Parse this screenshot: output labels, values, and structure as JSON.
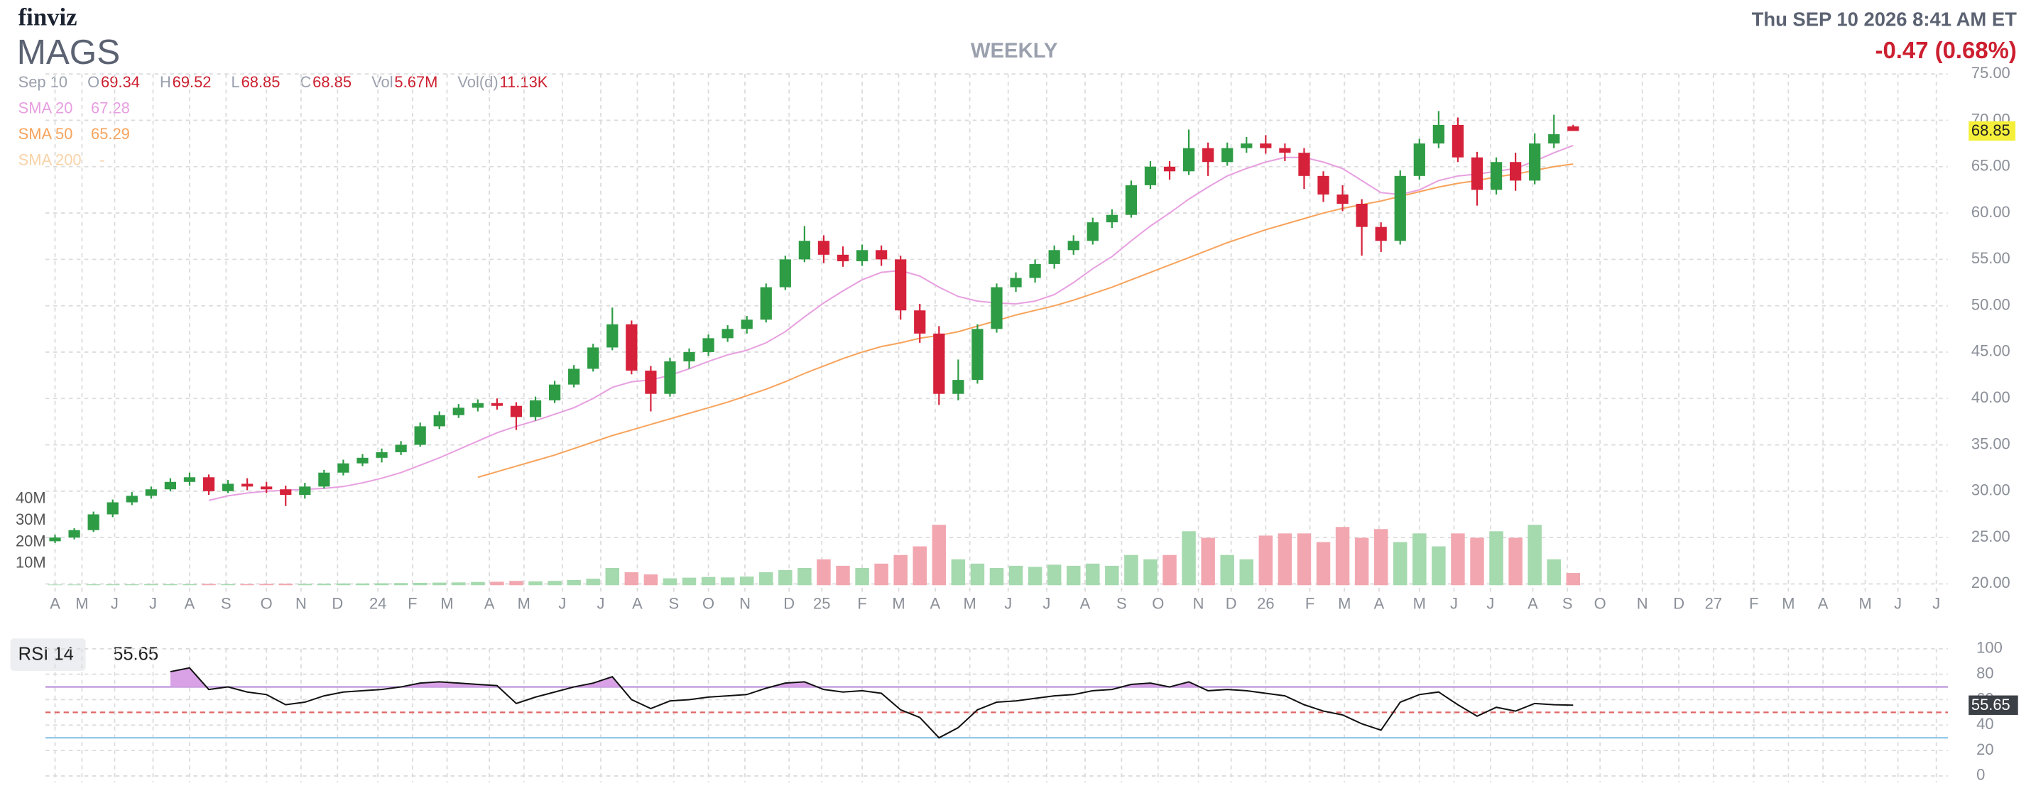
{
  "header": {
    "logo": "finviz",
    "ticker": "MAGS",
    "timeframe": "WEEKLY",
    "datetime": "Thu SEP 10 2026 8:41 AM ET",
    "change": "-0.47 (0.68%)",
    "date": "Sep 10",
    "o": "O",
    "h": "H",
    "l": "L",
    "c": "C",
    "vol": "Vol",
    "vol_value": "5.67M",
    "vold": "Vol(d)",
    "vold_value": "11.13K"
  },
  "chart_data": [
    {
      "type": "candlestick",
      "up_color": "#2e9c45",
      "down_color": "#d6213a",
      "xlim": [
        -0.5,
        98.5
      ],
      "xticks": [
        {
          "value": 0,
          "label": "A"
        },
        {
          "value": 1.4,
          "label": "M"
        },
        {
          "value": 3.1,
          "label": "J"
        },
        {
          "value": 5.1,
          "label": "J"
        },
        {
          "value": 7.0,
          "label": "A"
        },
        {
          "value": 8.9,
          "label": "S"
        },
        {
          "value": 11.0,
          "label": "O"
        },
        {
          "value": 12.8,
          "label": "N"
        },
        {
          "value": 14.7,
          "label": "D"
        },
        {
          "value": 16.8,
          "label": "24"
        },
        {
          "value": 18.6,
          "label": "F"
        },
        {
          "value": 20.4,
          "label": "M"
        },
        {
          "value": 22.6,
          "label": "A"
        },
        {
          "value": 24.4,
          "label": "M"
        },
        {
          "value": 26.4,
          "label": "J"
        },
        {
          "value": 28.4,
          "label": "J"
        },
        {
          "value": 30.3,
          "label": "A"
        },
        {
          "value": 32.2,
          "label": "S"
        },
        {
          "value": 34.0,
          "label": "O"
        },
        {
          "value": 35.9,
          "label": "N"
        },
        {
          "value": 38.2,
          "label": "D"
        },
        {
          "value": 39.9,
          "label": "25"
        },
        {
          "value": 42.0,
          "label": "F"
        },
        {
          "value": 43.9,
          "label": "M"
        },
        {
          "value": 45.8,
          "label": "A"
        },
        {
          "value": 47.6,
          "label": "M"
        },
        {
          "value": 49.6,
          "label": "J"
        },
        {
          "value": 51.6,
          "label": "J"
        },
        {
          "value": 53.6,
          "label": "A"
        },
        {
          "value": 55.5,
          "label": "S"
        },
        {
          "value": 57.4,
          "label": "O"
        },
        {
          "value": 59.5,
          "label": "N"
        },
        {
          "value": 61.2,
          "label": "D"
        },
        {
          "value": 63.0,
          "label": "26"
        },
        {
          "value": 65.3,
          "label": "F"
        },
        {
          "value": 67.1,
          "label": "M"
        },
        {
          "value": 68.9,
          "label": "A"
        },
        {
          "value": 71.0,
          "label": "M"
        },
        {
          "value": 72.8,
          "label": "J"
        },
        {
          "value": 74.7,
          "label": "J"
        },
        {
          "value": 76.9,
          "label": "A"
        },
        {
          "value": 78.7,
          "label": "S"
        },
        {
          "value": 80.4,
          "label": "O"
        },
        {
          "value": 82.6,
          "label": "N"
        },
        {
          "value": 84.5,
          "label": "D"
        },
        {
          "value": 86.3,
          "label": "27"
        },
        {
          "value": 88.4,
          "label": "F"
        },
        {
          "value": 90.2,
          "label": "M"
        },
        {
          "value": 92.0,
          "label": "A"
        },
        {
          "value": 94.2,
          "label": "M"
        },
        {
          "value": 95.9,
          "label": "J"
        },
        {
          "value": 97.9,
          "label": "J"
        }
      ],
      "ylim": [
        20,
        75
      ],
      "yticks": [
        {
          "value": 20,
          "label": "20.00"
        },
        {
          "value": 25,
          "label": "25.00"
        },
        {
          "value": 30,
          "label": "30.00"
        },
        {
          "value": 35,
          "label": "35.00"
        },
        {
          "value": 40,
          "label": "40.00"
        },
        {
          "value": 45,
          "label": "45.00"
        },
        {
          "value": 50,
          "label": "50.00"
        },
        {
          "value": 55,
          "label": "55.00"
        },
        {
          "value": 60,
          "label": "60.00"
        },
        {
          "value": 65,
          "label": "65.00"
        },
        {
          "value": 70,
          "label": "70.00"
        },
        {
          "value": 75,
          "label": "75.00"
        }
      ],
      "candles": [
        [
          24.6,
          25.3,
          24.4,
          25.0
        ],
        [
          25.0,
          26.0,
          24.8,
          25.8
        ],
        [
          25.8,
          27.8,
          25.6,
          27.5
        ],
        [
          27.5,
          29.1,
          27.2,
          28.8
        ],
        [
          28.8,
          29.9,
          28.5,
          29.5
        ],
        [
          29.5,
          30.5,
          29.2,
          30.2
        ],
        [
          30.2,
          31.4,
          30.0,
          31.0
        ],
        [
          31.0,
          32.0,
          30.6,
          31.5
        ],
        [
          31.5,
          31.8,
          29.6,
          30.0
        ],
        [
          30.0,
          31.2,
          29.8,
          30.8
        ],
        [
          30.8,
          31.4,
          30.1,
          30.5
        ],
        [
          30.5,
          31.0,
          29.8,
          30.2
        ],
        [
          30.2,
          30.6,
          28.4,
          29.6
        ],
        [
          29.6,
          30.9,
          29.2,
          30.5
        ],
        [
          30.5,
          32.3,
          30.3,
          32.0
        ],
        [
          32.0,
          33.4,
          31.7,
          33.0
        ],
        [
          33.0,
          34.0,
          32.7,
          33.6
        ],
        [
          33.6,
          34.6,
          33.1,
          34.2
        ],
        [
          34.2,
          35.4,
          33.9,
          35.0
        ],
        [
          35.0,
          37.4,
          34.8,
          37.0
        ],
        [
          37.0,
          38.6,
          36.7,
          38.2
        ],
        [
          38.2,
          39.4,
          37.9,
          39.0
        ],
        [
          39.0,
          39.9,
          38.6,
          39.5
        ],
        [
          39.5,
          40.0,
          38.8,
          39.2
        ],
        [
          39.2,
          39.6,
          36.6,
          38.0
        ],
        [
          38.0,
          40.2,
          37.6,
          39.8
        ],
        [
          39.8,
          41.9,
          39.5,
          41.5
        ],
        [
          41.5,
          43.6,
          41.2,
          43.2
        ],
        [
          43.2,
          45.9,
          42.9,
          45.5
        ],
        [
          45.5,
          49.8,
          45.2,
          48.0
        ],
        [
          48.0,
          48.4,
          42.6,
          43.0
        ],
        [
          43.0,
          43.5,
          38.6,
          40.5
        ],
        [
          40.5,
          44.4,
          40.2,
          44.0
        ],
        [
          44.0,
          45.4,
          43.2,
          45.0
        ],
        [
          45.0,
          46.9,
          44.6,
          46.5
        ],
        [
          46.5,
          47.9,
          46.1,
          47.5
        ],
        [
          47.5,
          48.9,
          47.0,
          48.5
        ],
        [
          48.5,
          52.4,
          48.2,
          52.0
        ],
        [
          52.0,
          55.4,
          51.7,
          55.0
        ],
        [
          55.0,
          58.6,
          54.7,
          57.0
        ],
        [
          57.0,
          57.6,
          54.6,
          55.5
        ],
        [
          55.5,
          56.4,
          54.2,
          54.8
        ],
        [
          54.8,
          56.6,
          54.3,
          56.0
        ],
        [
          56.0,
          56.5,
          54.3,
          55.0
        ],
        [
          55.0,
          55.4,
          48.5,
          49.5
        ],
        [
          49.5,
          50.2,
          46.0,
          47.0
        ],
        [
          47.0,
          47.8,
          39.3,
          40.5
        ],
        [
          40.5,
          44.2,
          39.8,
          42.0
        ],
        [
          42.0,
          48.0,
          41.6,
          47.5
        ],
        [
          47.5,
          52.4,
          47.1,
          52.0
        ],
        [
          52.0,
          53.6,
          51.5,
          53.0
        ],
        [
          53.0,
          55.0,
          52.5,
          54.5
        ],
        [
          54.5,
          56.5,
          54.0,
          56.0
        ],
        [
          56.0,
          57.6,
          55.5,
          57.0
        ],
        [
          57.0,
          59.5,
          56.6,
          59.0
        ],
        [
          59.0,
          60.4,
          58.4,
          59.8
        ],
        [
          59.8,
          63.5,
          59.5,
          63.0
        ],
        [
          63.0,
          65.6,
          62.6,
          65.0
        ],
        [
          65.0,
          65.6,
          63.6,
          64.5
        ],
        [
          64.5,
          69.0,
          64.1,
          67.0
        ],
        [
          67.0,
          67.6,
          64.0,
          65.5
        ],
        [
          65.5,
          67.6,
          65.1,
          67.0
        ],
        [
          67.0,
          68.2,
          66.5,
          67.5
        ],
        [
          67.5,
          68.4,
          66.4,
          67.0
        ],
        [
          67.0,
          67.5,
          65.6,
          66.5
        ],
        [
          66.5,
          67.0,
          62.6,
          64.0
        ],
        [
          64.0,
          64.5,
          61.2,
          62.0
        ],
        [
          62.0,
          63.0,
          60.2,
          61.0
        ],
        [
          61.0,
          61.5,
          55.4,
          58.5
        ],
        [
          58.5,
          59.0,
          55.8,
          57.0
        ],
        [
          57.0,
          64.6,
          56.6,
          64.0
        ],
        [
          64.0,
          68.0,
          63.6,
          67.5
        ],
        [
          67.5,
          71.0,
          67.0,
          69.5
        ],
        [
          69.5,
          70.3,
          65.5,
          66.0
        ],
        [
          66.0,
          66.6,
          60.8,
          62.5
        ],
        [
          62.5,
          66.0,
          62.0,
          65.5
        ],
        [
          65.5,
          66.5,
          62.4,
          63.5
        ],
        [
          63.5,
          68.6,
          63.1,
          67.5
        ],
        [
          67.5,
          70.6,
          67.0,
          68.5
        ],
        [
          69.34,
          69.52,
          68.85,
          68.85
        ]
      ],
      "series": [
        {
          "name": "SMA 20",
          "color": "#e79fe0",
          "values": [
            null,
            null,
            null,
            null,
            null,
            null,
            null,
            null,
            29.0,
            29.5,
            29.8,
            30.0,
            30.1,
            30.2,
            30.3,
            30.5,
            30.9,
            31.4,
            32.0,
            32.8,
            33.6,
            34.5,
            35.4,
            36.3,
            37.0,
            37.6,
            38.3,
            39.0,
            40.0,
            41.2,
            41.8,
            42.0,
            42.5,
            43.2,
            44.0,
            44.7,
            45.2,
            46.0,
            47.2,
            48.8,
            50.3,
            51.6,
            52.8,
            53.6,
            53.8,
            53.2,
            52.0,
            51.0,
            50.5,
            50.3,
            50.2,
            50.5,
            51.2,
            52.5,
            54.0,
            55.3,
            57.0,
            58.6,
            60.0,
            61.5,
            62.8,
            64.0,
            64.8,
            65.5,
            66.0,
            66.0,
            65.5,
            64.8,
            63.5,
            62.2,
            62.0,
            62.5,
            63.5,
            64.0,
            64.2,
            64.5,
            64.8,
            65.6,
            66.5,
            67.28
          ]
        },
        {
          "name": "SMA 50",
          "color": "#f7a35c",
          "values": [
            null,
            null,
            null,
            null,
            null,
            null,
            null,
            null,
            null,
            null,
            null,
            null,
            null,
            null,
            null,
            null,
            null,
            null,
            null,
            null,
            null,
            null,
            31.5,
            32.1,
            32.7,
            33.3,
            33.9,
            34.6,
            35.3,
            36.0,
            36.6,
            37.2,
            37.8,
            38.4,
            39.0,
            39.6,
            40.3,
            41.0,
            41.8,
            42.7,
            43.5,
            44.3,
            45.0,
            45.6,
            46.0,
            46.5,
            46.8,
            47.2,
            47.8,
            48.4,
            49.0,
            49.5,
            50.0,
            50.6,
            51.3,
            52.0,
            52.8,
            53.6,
            54.4,
            55.2,
            56.0,
            56.8,
            57.5,
            58.2,
            58.8,
            59.4,
            60.0,
            60.5,
            60.9,
            61.3,
            61.8,
            62.3,
            62.8,
            63.2,
            63.5,
            63.9,
            64.2,
            64.6,
            65.0,
            65.29
          ]
        },
        {
          "name": "SMA 200",
          "color": "#f8d3a8",
          "last_label": "-"
        }
      ],
      "volume": {
        "up_color": "#a5d9ae",
        "down_color": "#f2a7b0",
        "ylim": [
          0,
          40
        ],
        "yticks": [
          {
            "value": 10,
            "label": "10M"
          },
          {
            "value": 20,
            "label": "20M"
          },
          {
            "value": 30,
            "label": "30M"
          },
          {
            "value": 40,
            "label": "40M"
          }
        ],
        "values": [
          0.3,
          0.3,
          0.4,
          0.4,
          0.4,
          0.5,
          0.5,
          0.5,
          0.6,
          0.5,
          0.5,
          0.6,
          0.7,
          0.6,
          0.7,
          0.8,
          0.8,
          0.9,
          1.0,
          1.1,
          1.2,
          1.3,
          1.5,
          1.6,
          2.0,
          1.8,
          2.0,
          2.4,
          3.0,
          8.0,
          6.0,
          5.0,
          3.2,
          3.5,
          3.8,
          3.6,
          4.0,
          6.0,
          7.0,
          8.0,
          12.0,
          9.0,
          8.0,
          10.0,
          14.0,
          18.0,
          28.0,
          12.0,
          10.0,
          8.0,
          9.0,
          8.5,
          9.5,
          9.0,
          10.0,
          9.0,
          14.0,
          12.0,
          14.0,
          25.0,
          22.0,
          14.0,
          12.0,
          23.0,
          24.0,
          24.0,
          20.0,
          27.0,
          22.0,
          26.0,
          20.0,
          24.0,
          18.0,
          24.0,
          22.0,
          25.0,
          22.0,
          28.0,
          12.0,
          5.67
        ]
      }
    },
    {
      "type": "line",
      "title": "RSI 14",
      "color": "#111111",
      "fill_color": "#d9a2e6",
      "ylim": [
        0,
        100
      ],
      "yticks": [
        0,
        20,
        40,
        60,
        80,
        100
      ],
      "levels": [
        {
          "value": 70,
          "color": "#b98fd8"
        },
        {
          "value": 50,
          "color": "#e06666",
          "dashed": true
        },
        {
          "value": 30,
          "color": "#8cc4e8"
        }
      ],
      "values": [
        null,
        null,
        null,
        null,
        null,
        null,
        82,
        85,
        68,
        70,
        66,
        64,
        56,
        58,
        63,
        66,
        67,
        68,
        70,
        73,
        74,
        73,
        72,
        71,
        57,
        62,
        66,
        70,
        73,
        78,
        60,
        53,
        59,
        60,
        62,
        63,
        64,
        69,
        73,
        74,
        68,
        66,
        67,
        65,
        52,
        46,
        30,
        38,
        52,
        58,
        59,
        61,
        63,
        64,
        67,
        68,
        72,
        73,
        70,
        74,
        67,
        68,
        67,
        65,
        63,
        56,
        51,
        48,
        41,
        36,
        58,
        64,
        66,
        56,
        47,
        54,
        51,
        57,
        56,
        55.65
      ]
    }
  ]
}
